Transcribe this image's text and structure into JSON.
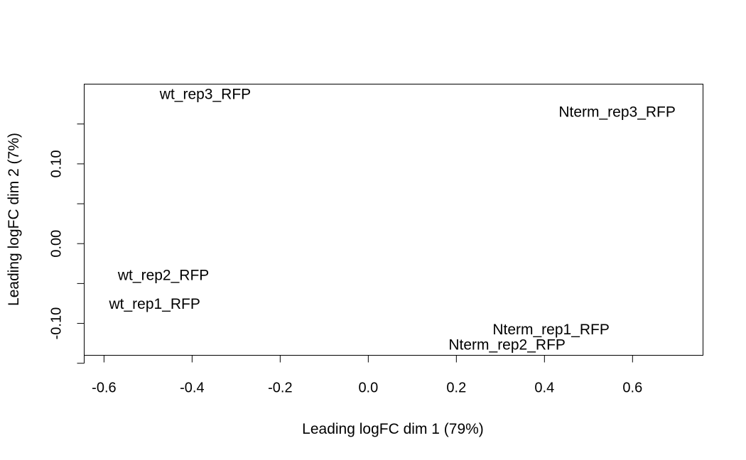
{
  "chart_data": {
    "type": "scatter",
    "title": "",
    "xlabel": "Leading logFC dim 1 (79%)",
    "ylabel": "Leading logFC dim 2 (7%)",
    "xlim": [
      -0.645,
      0.76
    ],
    "ylim": [
      -0.14,
      0.2
    ],
    "x_ticks": [
      -0.6,
      -0.4,
      -0.2,
      0.0,
      0.2,
      0.4,
      0.6
    ],
    "x_tick_labels": [
      "-0.6",
      "-0.4",
      "-0.2",
      "0.0",
      "0.2",
      "0.4",
      "0.6"
    ],
    "y_ticks": [
      -0.15,
      -0.1,
      -0.05,
      0.0,
      0.05,
      0.1,
      0.15
    ],
    "y_tick_labels": [
      "",
      "-0.10",
      "",
      "0.00",
      "",
      "0.10",
      ""
    ],
    "grid": false,
    "legend": "none",
    "marker": "text-label",
    "points": [
      {
        "label": "wt_rep3_RFP",
        "x": -0.37,
        "y": 0.187
      },
      {
        "label": "Nterm_rep3_RFP",
        "x": 0.565,
        "y": 0.165
      },
      {
        "label": "wt_rep2_RFP",
        "x": -0.465,
        "y": -0.04
      },
      {
        "label": "wt_rep1_RFP",
        "x": -0.485,
        "y": -0.076
      },
      {
        "label": "Nterm_rep1_RFP",
        "x": 0.415,
        "y": -0.108
      },
      {
        "label": "Nterm_rep2_RFP",
        "x": 0.315,
        "y": -0.127
      }
    ]
  }
}
